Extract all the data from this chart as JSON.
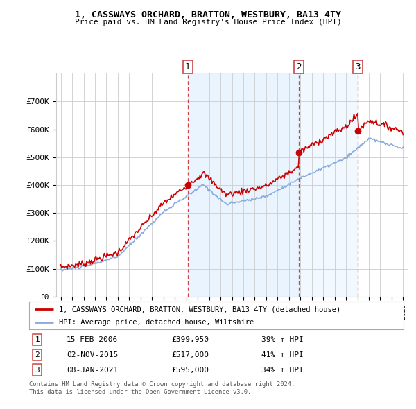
{
  "title": "1, CASSWAYS ORCHARD, BRATTON, WESTBURY, BA13 4TY",
  "subtitle": "Price paid vs. HM Land Registry's House Price Index (HPI)",
  "red_label": "1, CASSWAYS ORCHARD, BRATTON, WESTBURY, BA13 4TY (detached house)",
  "blue_label": "HPI: Average price, detached house, Wiltshire",
  "transactions": [
    {
      "num": 1,
      "date": "15-FEB-2006",
      "price": 399950,
      "price_str": "£399,950",
      "pct": "39% ↑ HPI",
      "x": 2006.12
    },
    {
      "num": 2,
      "date": "02-NOV-2015",
      "price": 517000,
      "price_str": "£517,000",
      "pct": "41% ↑ HPI",
      "x": 2015.84
    },
    {
      "num": 3,
      "date": "08-JAN-2021",
      "price": 595000,
      "price_str": "£595,000",
      "pct": "34% ↑ HPI",
      "x": 2021.04
    }
  ],
  "footnote1": "Contains HM Land Registry data © Crown copyright and database right 2024.",
  "footnote2": "This data is licensed under the Open Government Licence v3.0.",
  "background_color": "#ffffff",
  "grid_color": "#cccccc",
  "red_color": "#cc0000",
  "blue_color": "#88aadd",
  "shade_color": "#ddeeff",
  "vline_color": "#cc4444",
  "ylim": [
    0,
    800000
  ],
  "yticks": [
    0,
    100000,
    200000,
    300000,
    400000,
    500000,
    600000,
    700000
  ],
  "ytick_labels": [
    "£0",
    "£100K",
    "£200K",
    "£300K",
    "£400K",
    "£500K",
    "£600K",
    "£700K"
  ],
  "xmin": 1994.6,
  "xmax": 2025.4
}
